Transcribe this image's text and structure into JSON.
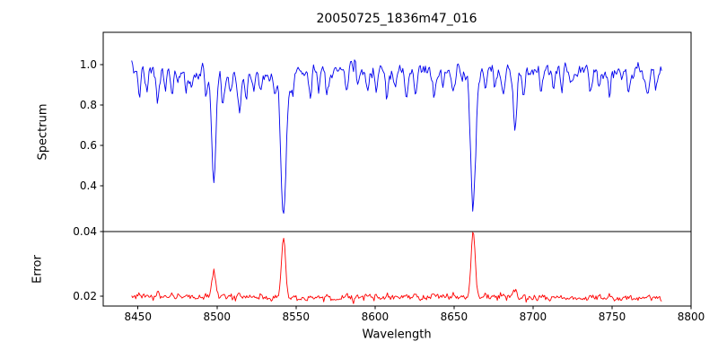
{
  "figure": {
    "title": "20050725_1836m47_016"
  },
  "chart_data": {
    "type": "line",
    "title": "20050725_1836m47_016",
    "xlabel": "Wavelength",
    "x_ticks": [
      8450,
      8500,
      8550,
      8600,
      8650,
      8700,
      8750,
      8800
    ],
    "x_tick_labels": [
      "8450",
      "8500",
      "8550",
      "8600",
      "8650",
      "8700",
      "8750",
      "8800"
    ],
    "xlim": [
      8428,
      8800
    ],
    "x_range": [
      8446,
      8782
    ],
    "sample_step": 0.65,
    "error_minor_factor": 0.009,
    "panels": [
      {
        "name": "spectrum",
        "ylabel": "Spectrum",
        "color": "#0000ee",
        "ylim": [
          0.173,
          1.16
        ],
        "yticks": [
          0.4,
          0.6,
          0.8,
          1.0
        ],
        "ytick_labels": [
          "0.4",
          "0.6",
          "0.8",
          "1.0"
        ],
        "continuum": 0.97,
        "noise_std": 0.022
      },
      {
        "name": "error",
        "ylabel": "Error",
        "color": "#ff0000",
        "ylim": [
          0.0169,
          0.04
        ],
        "yticks": [
          0.02,
          0.04
        ],
        "ytick_labels": [
          "0.02",
          "0.04"
        ],
        "baseline": 0.0194,
        "noise_std": 0.00045
      }
    ],
    "absorption_lines": [
      {
        "center": 8498.0,
        "depth": 0.55,
        "sigma": 1.3,
        "error_spike": 0.008
      },
      {
        "center": 8542.1,
        "depth": 0.72,
        "sigma": 1.8,
        "error_spike": 0.0185
      },
      {
        "center": 8662.1,
        "depth": 0.67,
        "sigma": 1.6,
        "error_spike": 0.0202
      }
    ],
    "minor_lines": [
      {
        "c": 8451.0,
        "d": 0.1,
        "s": 1.0
      },
      {
        "c": 8455.5,
        "d": 0.12,
        "s": 0.9
      },
      {
        "c": 8462.5,
        "d": 0.15,
        "s": 1.0
      },
      {
        "c": 8467.0,
        "d": 0.09,
        "s": 0.8
      },
      {
        "c": 8471.5,
        "d": 0.11,
        "s": 0.9
      },
      {
        "c": 8476.0,
        "d": 0.08,
        "s": 0.8
      },
      {
        "c": 8480.5,
        "d": 0.12,
        "s": 0.9
      },
      {
        "c": 8484.0,
        "d": 0.09,
        "s": 0.8
      },
      {
        "c": 8493.0,
        "d": 0.1,
        "s": 0.9
      },
      {
        "c": 8504.0,
        "d": 0.16,
        "s": 1.0
      },
      {
        "c": 8508.5,
        "d": 0.1,
        "s": 0.9
      },
      {
        "c": 8514.0,
        "d": 0.2,
        "s": 1.1
      },
      {
        "c": 8518.5,
        "d": 0.12,
        "s": 0.9
      },
      {
        "c": 8523.0,
        "d": 0.09,
        "s": 0.8
      },
      {
        "c": 8527.5,
        "d": 0.12,
        "s": 0.9
      },
      {
        "c": 8536.5,
        "d": 0.11,
        "s": 0.9
      },
      {
        "c": 8548.0,
        "d": 0.1,
        "s": 0.9
      },
      {
        "c": 8559.0,
        "d": 0.12,
        "s": 0.9
      },
      {
        "c": 8564.5,
        "d": 0.09,
        "s": 0.8
      },
      {
        "c": 8570.0,
        "d": 0.11,
        "s": 0.9
      },
      {
        "c": 8582.0,
        "d": 0.1,
        "s": 0.9
      },
      {
        "c": 8589.0,
        "d": 0.07,
        "s": 0.8
      },
      {
        "c": 8595.5,
        "d": 0.11,
        "s": 0.9
      },
      {
        "c": 8601.0,
        "d": 0.08,
        "s": 0.8
      },
      {
        "c": 8607.5,
        "d": 0.12,
        "s": 0.9
      },
      {
        "c": 8613.0,
        "d": 0.09,
        "s": 0.8
      },
      {
        "c": 8620.0,
        "d": 0.14,
        "s": 1.0
      },
      {
        "c": 8625.5,
        "d": 0.1,
        "s": 0.9
      },
      {
        "c": 8637.5,
        "d": 0.11,
        "s": 0.9
      },
      {
        "c": 8643.0,
        "d": 0.08,
        "s": 0.8
      },
      {
        "c": 8649.5,
        "d": 0.1,
        "s": 0.9
      },
      {
        "c": 8670.0,
        "d": 0.1,
        "s": 0.9
      },
      {
        "c": 8675.5,
        "d": 0.08,
        "s": 0.8
      },
      {
        "c": 8681.0,
        "d": 0.11,
        "s": 0.9
      },
      {
        "c": 8688.5,
        "d": 0.28,
        "s": 1.2
      },
      {
        "c": 8694.0,
        "d": 0.12,
        "s": 0.9
      },
      {
        "c": 8705.0,
        "d": 0.1,
        "s": 0.9
      },
      {
        "c": 8712.5,
        "d": 0.08,
        "s": 0.8
      },
      {
        "c": 8718.0,
        "d": 0.11,
        "s": 0.9
      },
      {
        "c": 8724.5,
        "d": 0.09,
        "s": 0.8
      },
      {
        "c": 8736.5,
        "d": 0.1,
        "s": 0.9
      },
      {
        "c": 8742.0,
        "d": 0.08,
        "s": 0.8
      },
      {
        "c": 8748.5,
        "d": 0.11,
        "s": 0.9
      },
      {
        "c": 8760.5,
        "d": 0.09,
        "s": 0.8
      },
      {
        "c": 8772.5,
        "d": 0.1,
        "s": 0.9
      },
      {
        "c": 8778.0,
        "d": 0.07,
        "s": 0.8
      }
    ]
  }
}
